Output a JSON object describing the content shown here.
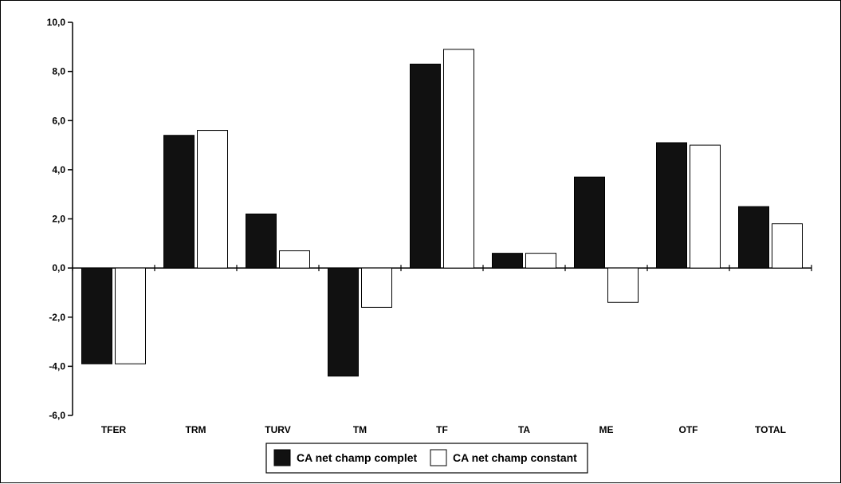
{
  "chart_data": {
    "type": "bar",
    "categories": [
      "TFER",
      "TRM",
      "TURV",
      "TM",
      "TF",
      "TA",
      "ME",
      "OTF",
      "TOTAL"
    ],
    "series": [
      {
        "name": "CA net champ complet",
        "values": [
          -3.9,
          5.4,
          2.2,
          -4.4,
          8.3,
          0.6,
          3.7,
          5.1,
          2.5
        ],
        "color": "#111111"
      },
      {
        "name": "CA net champ constant",
        "values": [
          -3.9,
          5.6,
          0.7,
          -1.6,
          8.9,
          0.6,
          -1.4,
          5.0,
          1.8
        ],
        "color": "#ffffff"
      }
    ],
    "ylim": [
      -6,
      10
    ],
    "yticks": [
      "-6,0",
      "-4,0",
      "-2,0",
      "0,0",
      "2,0",
      "4,0",
      "6,0",
      "8,0",
      "10,0"
    ],
    "xlabel": "",
    "ylabel": "",
    "title": "",
    "grid": false,
    "legend_position": "bottom-center"
  }
}
